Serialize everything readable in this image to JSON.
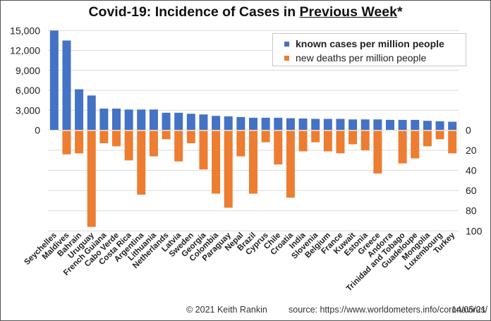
{
  "title": {
    "prefix": "Covid-19: Incidence of Cases in ",
    "underlined": "Previous Week",
    "suffix": "*"
  },
  "legend": {
    "items": [
      {
        "label": "known cases per million people",
        "color": "#4472c4",
        "bold": true
      },
      {
        "label": "new deaths per million people",
        "color": "#ed7d31",
        "bold": false
      }
    ]
  },
  "footer": {
    "copyright": "© 2021  Keith Rankin",
    "source": "source:  https://www.worldometers.info/coronavirus/",
    "date": "14/05/21"
  },
  "chart_data": {
    "type": "bar",
    "title": "Covid-19: Incidence of Cases in Previous Week*",
    "xlabel": "",
    "ylabel_left": "known cases per million people",
    "ylabel_right": "new deaths per million people",
    "grid": true,
    "legend_position": "top-right",
    "left_axis": {
      "ylim": [
        0,
        15000
      ],
      "ticks": [
        "0",
        "3,000",
        "6,000",
        "9,000",
        "12,000",
        "15,000"
      ],
      "tick_values": [
        0,
        3000,
        6000,
        9000,
        12000,
        15000
      ]
    },
    "right_axis": {
      "ylim": [
        0,
        100
      ],
      "inverted": true,
      "ticks": [
        "0",
        "20",
        "40",
        "60",
        "80",
        "100"
      ],
      "tick_values": [
        0,
        20,
        40,
        60,
        80,
        100
      ]
    },
    "categories": [
      "Seychelles",
      "Maldives",
      "Bahrain",
      "Uruguay",
      "French Guiana",
      "Cabo Verde",
      "Costa Rica",
      "Argentina",
      "Lithuania",
      "Netherlands",
      "Latvia",
      "Sweden",
      "Georgia",
      "Colombia",
      "Paraguay",
      "Nepal",
      "Brazil",
      "Cyprus",
      "Chile",
      "Croatia",
      "India",
      "Slovenia",
      "Belgium",
      "France",
      "Kuwait",
      "Estonia",
      "Greece",
      "Andorra",
      "Trinidad and Tobago",
      "Guadeloupe",
      "Mongolia",
      "Luxembourg",
      "Turkey"
    ],
    "series": [
      {
        "name": "known cases per million people",
        "axis": "left",
        "color": "#4472c4",
        "values": [
          15000,
          13500,
          6150,
          5220,
          3250,
          3250,
          3110,
          3110,
          3110,
          2620,
          2620,
          2470,
          2370,
          2150,
          2080,
          1980,
          1870,
          1870,
          1870,
          1800,
          1760,
          1700,
          1700,
          1700,
          1620,
          1620,
          1620,
          1550,
          1550,
          1550,
          1410,
          1340,
          1270
        ]
      },
      {
        "name": "new deaths per million people",
        "axis": "right",
        "color": "#ed7d31",
        "values": [
          0,
          24,
          23,
          96,
          13,
          16,
          30,
          64,
          26,
          9,
          31,
          13,
          39,
          63,
          77,
          26,
          63,
          12,
          34,
          67,
          21,
          12,
          21,
          23,
          14,
          20,
          43,
          0,
          33,
          28,
          16,
          9,
          23
        ]
      }
    ]
  }
}
